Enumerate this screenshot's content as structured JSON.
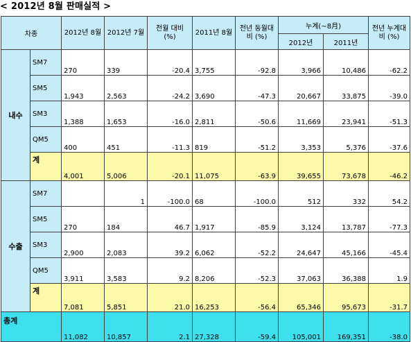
{
  "title": "< 2012년 8월 판매실적 >",
  "headers": {
    "category": "차종",
    "aug2012": "2012년 8월",
    "jul2012": "2012년 7월",
    "mom": "전월 대비 (%)",
    "aug2011": "2011년 8월",
    "yoy": "전년 동월대비 (%)",
    "cumulative": "누계(~8月)",
    "cum2012": "2012년",
    "cum2011": "2011년",
    "cum_yoy": "전년 누계대비 (%)"
  },
  "domestic": {
    "label": "내수",
    "rows": [
      {
        "model": "SM7",
        "aug2012": "270",
        "jul2012": "339",
        "mom": "-20.4",
        "aug2011": "3,755",
        "yoy": "-92.8",
        "cum2012": "3,966",
        "cum2011": "10,486",
        "cum_yoy": "-62.2"
      },
      {
        "model": "SM5",
        "aug2012": "1,943",
        "jul2012": "2,563",
        "mom": "-24.2",
        "aug2011": "3,690",
        "yoy": "-47.3",
        "cum2012": "20,667",
        "cum2011": "33,875",
        "cum_yoy": "-39.0"
      },
      {
        "model": "SM3",
        "aug2012": "1,388",
        "jul2012": "1,653",
        "mom": "-16.0",
        "aug2011": "2,811",
        "yoy": "-50.6",
        "cum2012": "11,669",
        "cum2011": "23,941",
        "cum_yoy": "-51.3"
      },
      {
        "model": "QM5",
        "aug2012": "400",
        "jul2012": "451",
        "mom": "-11.3",
        "aug2011": "819",
        "yoy": "-51.2",
        "cum2012": "3,353",
        "cum2011": "5,376",
        "cum_yoy": "-37.6"
      }
    ],
    "subtotal": {
      "label": "계",
      "aug2012": "4,001",
      "jul2012": "5,006",
      "mom": "-20.1",
      "aug2011": "11,075",
      "yoy": "-63.9",
      "cum2012": "39,655",
      "cum2011": "73,678",
      "cum_yoy": "-46.2"
    }
  },
  "export": {
    "label": "수출",
    "rows": [
      {
        "model": "SM7",
        "aug2012": "",
        "jul2012": "1",
        "mom": "-100.0",
        "aug2011": "68",
        "yoy": "-100.0",
        "cum2012": "512",
        "cum2011": "332",
        "cum_yoy": "54.2"
      },
      {
        "model": "SM5",
        "aug2012": "270",
        "jul2012": "184",
        "mom": "46.7",
        "aug2011": "1,917",
        "yoy": "-85.9",
        "cum2012": "3,124",
        "cum2011": "13,787",
        "cum_yoy": "-77.3"
      },
      {
        "model": "SM3",
        "aug2012": "2,900",
        "jul2012": "2,083",
        "mom": "39.2",
        "aug2011": "6,062",
        "yoy": "-52.2",
        "cum2012": "24,647",
        "cum2011": "45,166",
        "cum_yoy": "-45.4"
      },
      {
        "model": "QM5",
        "aug2012": "3,911",
        "jul2012": "3,583",
        "mom": "9.2",
        "aug2011": "8,206",
        "yoy": "-52.3",
        "cum2012": "37,063",
        "cum2011": "36,388",
        "cum_yoy": "1.9"
      }
    ],
    "subtotal": {
      "label": "계",
      "aug2012": "7,081",
      "jul2012": "5,851",
      "mom": "21.0",
      "aug2011": "16,253",
      "yoy": "-56.4",
      "cum2012": "65,346",
      "cum2011": "95,673",
      "cum_yoy": "-31.7"
    }
  },
  "total": {
    "label": "총계",
    "aug2012": "11,082",
    "jul2012": "10,857",
    "mom": "2.1",
    "aug2011": "27,328",
    "yoy": "-59.4",
    "cum2012": "105,001",
    "cum2011": "169,351",
    "cum_yoy": "-38.0"
  },
  "colors": {
    "header": "#c6ecf8",
    "subtotal": "#fcf9a8",
    "total": "#3fe0ee"
  }
}
